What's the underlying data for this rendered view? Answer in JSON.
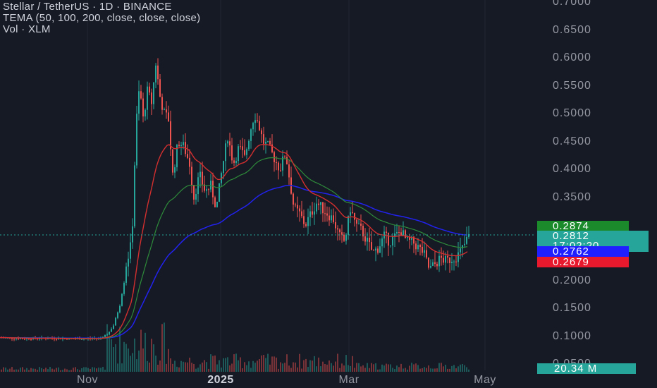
{
  "legend": {
    "symbol": "Stellar / TetherUS · 1D · BINANCE",
    "indicator": "TEMA (50, 100, 200, close, close, close)",
    "volume": "Vol · XLM"
  },
  "price_axis": [
    "0.7000",
    "0.6500",
    "0.6000",
    "0.5500",
    "0.5000",
    "0.4500",
    "0.4000",
    "0.3500",
    "0.2000",
    "0.1500",
    "0.1000",
    "0.0500"
  ],
  "time_axis": [
    "Nov",
    "2025",
    "Mar",
    "May"
  ],
  "labels": {
    "tema50": "0.2874",
    "last_price": "0.2812",
    "countdown": "17:02:20",
    "tema100": "0.2762",
    "tema200": "0.2679",
    "volume": "20.34 M"
  },
  "colors": {
    "background": "#161a25",
    "up": "#26a69a",
    "down": "#ef5350",
    "tema50": "#e53935",
    "tema100": "#2e7d32",
    "tema200": "#1a1aff",
    "grid": "#232632"
  }
}
